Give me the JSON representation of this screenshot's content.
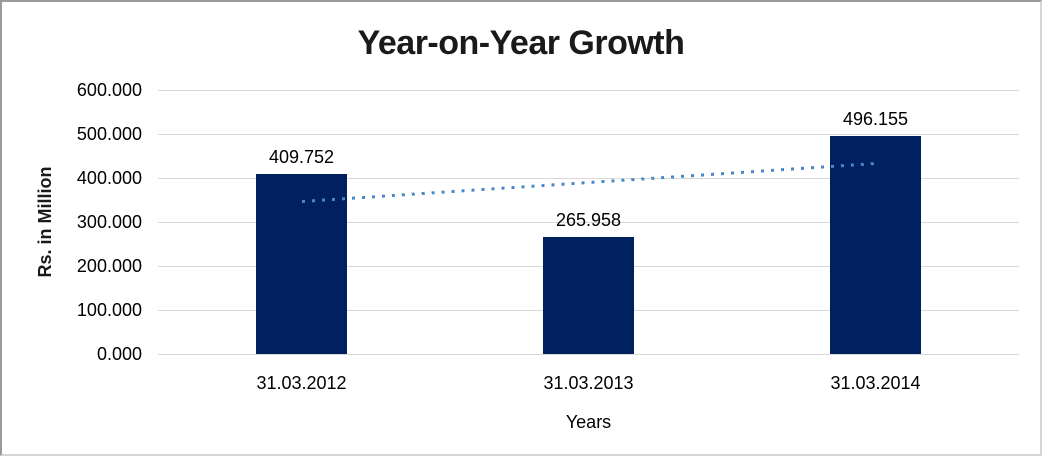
{
  "chart_data": {
    "type": "bar",
    "title": "Year-on-Year Growth",
    "xlabel": "Years",
    "ylabel": "Rs. in Million",
    "categories": [
      "31.03.2012",
      "31.03.2013",
      "31.03.2014"
    ],
    "values": [
      409.752,
      265.958,
      496.155
    ],
    "value_labels": [
      "409.752",
      "265.958",
      "496.155"
    ],
    "ylim": [
      0,
      600
    ],
    "ytick_values": [
      0,
      100,
      200,
      300,
      400,
      500,
      600
    ],
    "ytick_labels": [
      "0.000",
      "100.000",
      "200.000",
      "300.000",
      "400.000",
      "500.000",
      "600.000"
    ],
    "grid": "horizontal",
    "legend": "none",
    "colors": {
      "bar": "#002060",
      "gridline": "#d9d9d9",
      "text": "#1a1a1a",
      "background": "#ffffff"
    },
    "trendline": {
      "type": "linear",
      "style": "dotted",
      "color": "#4d86c8",
      "start_value": 347.42,
      "end_value": 433.82
    }
  }
}
